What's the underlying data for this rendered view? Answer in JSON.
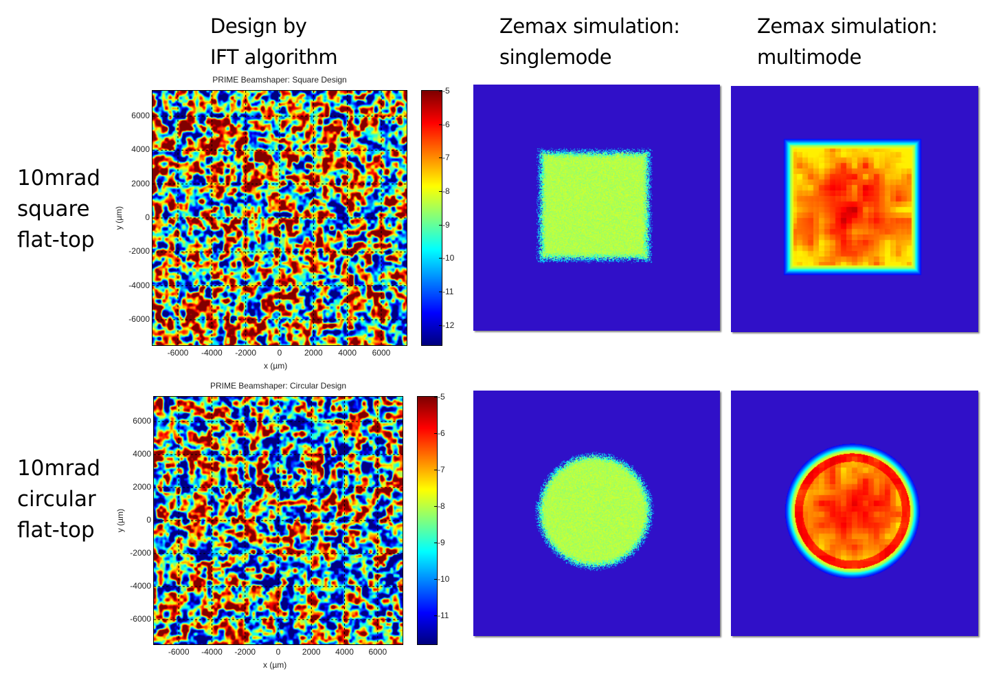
{
  "headings": {
    "col1": [
      "Design by",
      "IFT algorithm"
    ],
    "col2": [
      "Zemax simulation:",
      "singlemode"
    ],
    "col3": [
      "Zemax simulation:",
      "multimode"
    ]
  },
  "rows": [
    {
      "label": [
        "10mrad",
        "square",
        "flat-top"
      ]
    },
    {
      "label": [
        "10mrad",
        "circular",
        "flat-top"
      ]
    }
  ],
  "colors": {
    "zemax_background": "#3010c8",
    "singlemode_spot": "#7ae84a"
  },
  "chart_data": [
    {
      "type": "heatmap",
      "title": "PRIME Beamshaper: Square Design",
      "xlabel": "x (µm)",
      "ylabel": "y (µm)",
      "xlim": [
        -7500,
        7500
      ],
      "ylim": [
        -7500,
        7500
      ],
      "xticks": [
        -6000,
        -4000,
        -2000,
        0,
        2000,
        4000,
        6000
      ],
      "yticks": [
        6000,
        4000,
        2000,
        0,
        -2000,
        -4000,
        -6000
      ],
      "xtick_labels": [
        "-6000",
        "-4000",
        "-2000",
        "0",
        "2000",
        "4000",
        "6000"
      ],
      "ytick_labels": [
        "6000",
        "4000",
        "2000",
        "0",
        "-2000",
        "-4000",
        "-6000"
      ],
      "grid": true,
      "colormap": "jet",
      "colorbar": {
        "range": [
          -12.6,
          -5
        ],
        "ticks": [
          -5,
          -6,
          -7,
          -8,
          -9,
          -10,
          -11,
          -12
        ],
        "tick_labels": [
          "-5",
          "-6",
          "-7",
          "-8",
          "-9",
          "-10",
          "-11",
          "-12"
        ]
      }
    },
    {
      "type": "heatmap",
      "title": "PRIME Beamshaper: Circular Design",
      "xlabel": "x (µm)",
      "ylabel": "y (µm)",
      "xlim": [
        -7500,
        7500
      ],
      "ylim": [
        -7500,
        7500
      ],
      "xticks": [
        -6000,
        -4000,
        -2000,
        0,
        2000,
        4000,
        6000
      ],
      "yticks": [
        6000,
        4000,
        2000,
        0,
        -2000,
        -4000,
        -6000
      ],
      "xtick_labels": [
        "-6000",
        "-4000",
        "-2000",
        "0",
        "2000",
        "4000",
        "6000"
      ],
      "ytick_labels": [
        "6000",
        "4000",
        "2000",
        "0",
        "-2000",
        "-4000",
        "-6000"
      ],
      "grid": true,
      "colormap": "jet",
      "colorbar": {
        "range": [
          -11.8,
          -5
        ],
        "ticks": [
          -5,
          -6,
          -7,
          -8,
          -9,
          -10,
          -11
        ],
        "tick_labels": [
          "-5",
          "-6",
          "-7",
          "-8",
          "-9",
          "-10",
          "-11"
        ]
      }
    }
  ]
}
